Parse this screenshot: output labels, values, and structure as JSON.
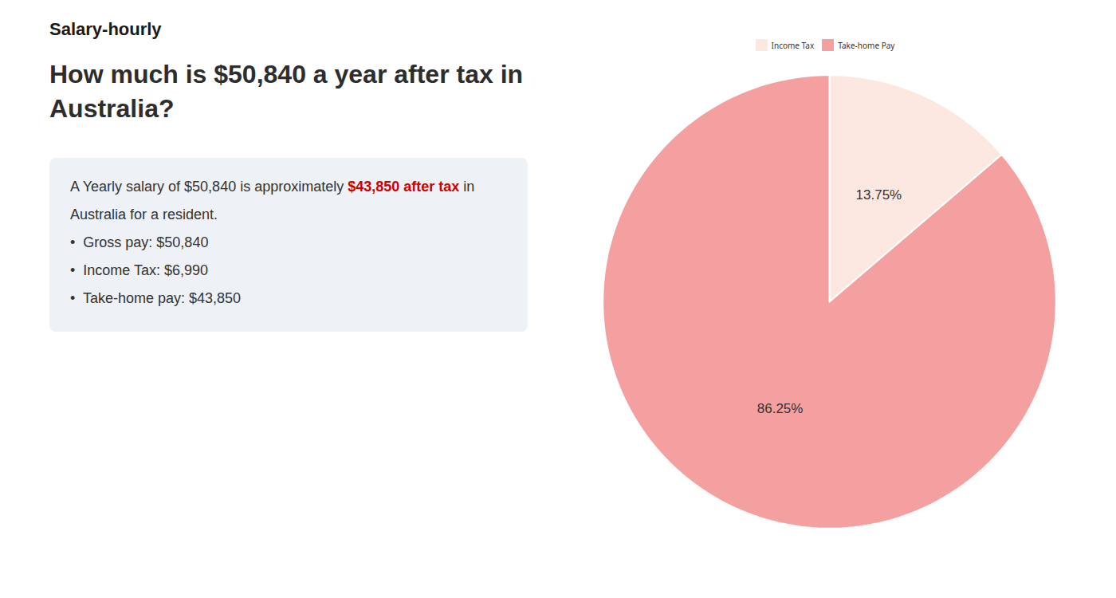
{
  "chart_data": {
    "type": "pie",
    "title": "How much is $50,840 a year after tax in\nAustralia?",
    "categories": [
      "Income Tax",
      "Take-home Pay"
    ],
    "values": [
      13.75,
      86.25
    ],
    "value_labels": [
      "13.75%",
      "86.25%"
    ],
    "colors": [
      "#fce8e0",
      "#f5a0a0"
    ],
    "data_labels": true,
    "legend": "top",
    "annotations": [
      [
        {
          "text": "Salary-hourly"
        }
      ],
      [
        {
          "text": "A Yearly salary of $50,840 is approximately "
        },
        {
          "text": "$43,850 after tax",
          "color": "#cc0000"
        },
        {
          "text": " in"
        }
      ],
      [
        {
          "text": "Australia for a resident."
        }
      ],
      [
        {
          "text": "•  Gross pay: $50,840"
        }
      ],
      [
        {
          "text": "•  Income Tax: $6,990"
        }
      ],
      [
        {
          "text": "•  Take-home pay: $43,850"
        }
      ]
    ]
  }
}
